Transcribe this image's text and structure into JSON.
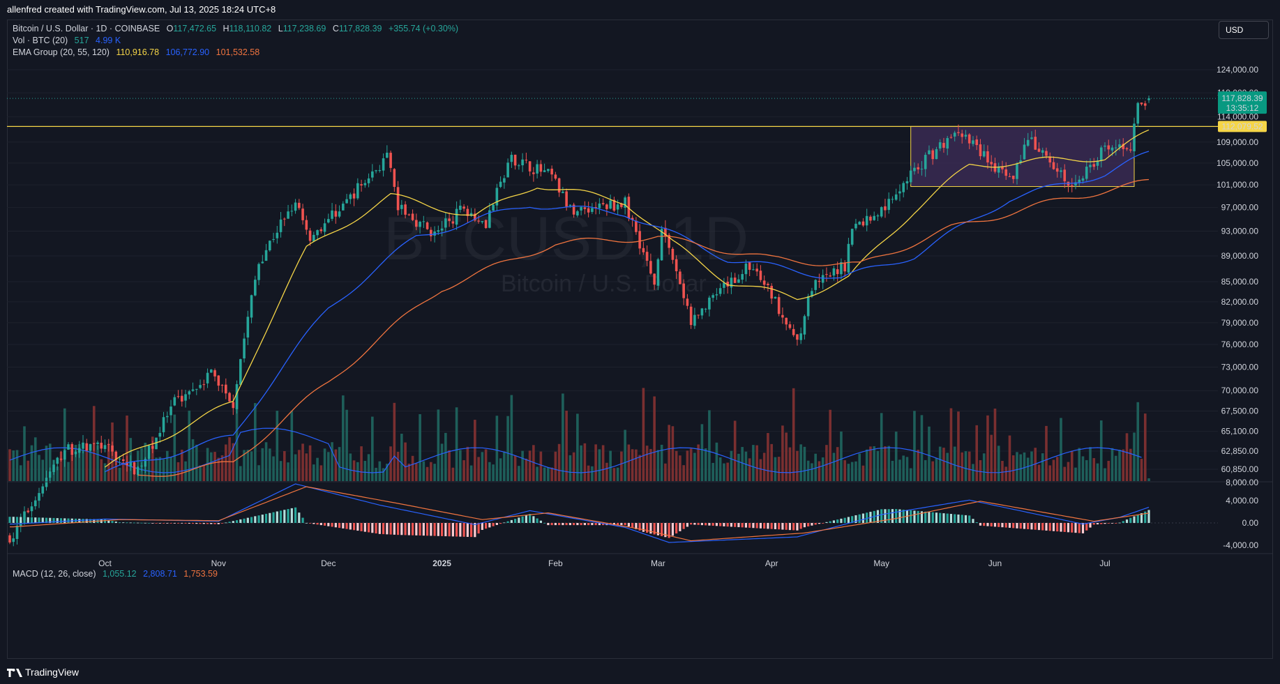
{
  "header": {
    "attribution": "allenfred created with TradingView.com, Jul 13, 2025 18:24 UTC+8"
  },
  "footer": {
    "brand": "TradingView"
  },
  "currency_button": "USD",
  "legend": {
    "symbol_line": "Bitcoin / U.S. Dollar · 1D · COINBASE",
    "open_label": "O",
    "open": "117,472.65",
    "high_label": "H",
    "high": "118,110.82",
    "low_label": "L",
    "low": "117,238.69",
    "close_label": "C",
    "close": "117,828.39",
    "change": "+355.74 (+0.30%)",
    "vol_label": "Vol · BTC (20)",
    "vol_value": "517",
    "vol_ma": "4.99 K",
    "ema_label": "EMA Group (20, 55, 120)",
    "ema20": "110,916.78",
    "ema55": "106,772.90",
    "ema120": "101,532.58",
    "macd_label": "MACD (12, 26, close)",
    "macd_hist": "1,055.12",
    "macd_line": "2,808.71",
    "macd_signal": "1,753.59"
  },
  "watermark": {
    "symbol": "BTCUSD, 1D",
    "name": "Bitcoin / U.S. Dollar"
  },
  "colors": {
    "background": "#131722",
    "up": "#26a69a",
    "down": "#ef5350",
    "ema20": "#f5d547",
    "ema55": "#2962ff",
    "ema120": "#f0743f",
    "box_fill": "#3a2a52",
    "box_stroke": "#f5d547",
    "hline": "#f5d547",
    "price_label": "#089981"
  },
  "price_axis": {
    "ticks": [
      "124,000.00",
      "119,000.00",
      "114,000.00",
      "109,000.00",
      "105,000.00",
      "101,000.00",
      "97,000.00",
      "93,000.00",
      "89,000.00",
      "85,000.00",
      "82,000.00",
      "79,000.00",
      "76,000.00",
      "73,000.00",
      "70,000.00",
      "67,500.00",
      "65,100.00",
      "62,850.00",
      "60,850.00"
    ],
    "tick_values": [
      124000,
      119000,
      114000,
      109000,
      105000,
      101000,
      97000,
      93000,
      89000,
      85000,
      82000,
      79000,
      76000,
      73000,
      70000,
      67500,
      65100,
      62850,
      60850
    ],
    "current_price": "117,828.39",
    "countdown": "13:35:12",
    "hline_price_label": "112,079.52"
  },
  "volume_axis": {
    "tick": "8,000.00"
  },
  "macd_axis": {
    "ticks": [
      "4,000.00",
      "0.00",
      "-4,000.00"
    ],
    "tick_values": [
      4000,
      0,
      -4000
    ]
  },
  "time_axis": {
    "labels": [
      "Oct",
      "Nov",
      "Dec",
      "2025",
      "Feb",
      "Mar",
      "Apr",
      "May",
      "Jun",
      "Jul"
    ]
  },
  "annotations": {
    "horizontal_line_price": 112079.52,
    "consolidation_box": {
      "start": "2025-05-09",
      "end": "2025-07-09",
      "top": 112079.52,
      "bottom": 100700
    }
  },
  "chart_data": {
    "type": "candlestick",
    "title": "Bitcoin / U.S. Dollar · 1D · COINBASE",
    "x_range": [
      "2024-09-05",
      "2025-07-13"
    ],
    "ylim": [
      56000,
      126000
    ],
    "y_scale": "log",
    "price_anchors": [
      {
        "date": "2024-09-06",
        "price": 54000
      },
      {
        "date": "2024-09-20",
        "price": 63000
      },
      {
        "date": "2024-09-30",
        "price": 63500
      },
      {
        "date": "2024-10-10",
        "price": 60500
      },
      {
        "date": "2024-10-20",
        "price": 68500
      },
      {
        "date": "2024-10-30",
        "price": 72300
      },
      {
        "date": "2024-11-05",
        "price": 68500
      },
      {
        "date": "2024-11-12",
        "price": 88000
      },
      {
        "date": "2024-11-22",
        "price": 98500
      },
      {
        "date": "2024-11-26",
        "price": 92000
      },
      {
        "date": "2024-12-05",
        "price": 97500
      },
      {
        "date": "2024-12-17",
        "price": 106000
      },
      {
        "date": "2024-12-20",
        "price": 97000
      },
      {
        "date": "2024-12-30",
        "price": 92500
      },
      {
        "date": "2025-01-07",
        "price": 97000
      },
      {
        "date": "2025-01-13",
        "price": 94500
      },
      {
        "date": "2025-01-20",
        "price": 106000
      },
      {
        "date": "2025-01-31",
        "price": 102500
      },
      {
        "date": "2025-02-05",
        "price": 96500
      },
      {
        "date": "2025-02-20",
        "price": 97800
      },
      {
        "date": "2025-02-28",
        "price": 84500
      },
      {
        "date": "2025-03-02",
        "price": 94000
      },
      {
        "date": "2025-03-10",
        "price": 79000
      },
      {
        "date": "2025-03-20",
        "price": 84500
      },
      {
        "date": "2025-03-26",
        "price": 87500
      },
      {
        "date": "2025-04-01",
        "price": 83000
      },
      {
        "date": "2025-04-08",
        "price": 76500
      },
      {
        "date": "2025-04-12",
        "price": 84000
      },
      {
        "date": "2025-04-21",
        "price": 87500
      },
      {
        "date": "2025-04-23",
        "price": 93500
      },
      {
        "date": "2025-05-01",
        "price": 96500
      },
      {
        "date": "2025-05-09",
        "price": 103000
      },
      {
        "date": "2025-05-22",
        "price": 111500
      },
      {
        "date": "2025-06-05",
        "price": 101500
      },
      {
        "date": "2025-06-10",
        "price": 109500
      },
      {
        "date": "2025-06-22",
        "price": 100500
      },
      {
        "date": "2025-06-30",
        "price": 107000
      },
      {
        "date": "2025-07-08",
        "price": 108500
      },
      {
        "date": "2025-07-10",
        "price": 116000
      },
      {
        "date": "2025-07-13",
        "price": 117828.39
      }
    ],
    "ema20_anchors": [
      {
        "date": "2024-10-01",
        "price": 61000
      },
      {
        "date": "2024-11-05",
        "price": 68500
      },
      {
        "date": "2024-11-25",
        "price": 90000
      },
      {
        "date": "2024-12-18",
        "price": 99000
      },
      {
        "date": "2025-01-10",
        "price": 95500
      },
      {
        "date": "2025-01-27",
        "price": 101000
      },
      {
        "date": "2025-02-20",
        "price": 98000
      },
      {
        "date": "2025-03-05",
        "price": 91000
      },
      {
        "date": "2025-03-20",
        "price": 85000
      },
      {
        "date": "2025-04-08",
        "price": 82500
      },
      {
        "date": "2025-04-22",
        "price": 85500
      },
      {
        "date": "2025-05-10",
        "price": 96500
      },
      {
        "date": "2025-05-25",
        "price": 104500
      },
      {
        "date": "2025-06-15",
        "price": 105500
      },
      {
        "date": "2025-07-01",
        "price": 106000
      },
      {
        "date": "2025-07-13",
        "price": 110916.78
      }
    ],
    "ema55_anchors": [
      {
        "date": "2024-10-01",
        "price": 60500
      },
      {
        "date": "2024-11-05",
        "price": 64500
      },
      {
        "date": "2024-12-01",
        "price": 81000
      },
      {
        "date": "2024-12-25",
        "price": 92000
      },
      {
        "date": "2025-01-25",
        "price": 97500
      },
      {
        "date": "2025-02-20",
        "price": 96000
      },
      {
        "date": "2025-03-20",
        "price": 88500
      },
      {
        "date": "2025-04-20",
        "price": 85500
      },
      {
        "date": "2025-05-10",
        "price": 89000
      },
      {
        "date": "2025-06-05",
        "price": 98500
      },
      {
        "date": "2025-07-01",
        "price": 103000
      },
      {
        "date": "2025-07-13",
        "price": 106772.9
      }
    ],
    "ema120_anchors": [
      {
        "date": "2024-10-10",
        "price": 60000
      },
      {
        "date": "2024-11-05",
        "price": 61500
      },
      {
        "date": "2024-12-01",
        "price": 71000
      },
      {
        "date": "2025-01-01",
        "price": 84000
      },
      {
        "date": "2025-02-01",
        "price": 91000
      },
      {
        "date": "2025-03-01",
        "price": 92000
      },
      {
        "date": "2025-04-01",
        "price": 88500
      },
      {
        "date": "2025-04-25",
        "price": 87500
      },
      {
        "date": "2025-05-20",
        "price": 93500
      },
      {
        "date": "2025-06-20",
        "price": 98500
      },
      {
        "date": "2025-07-13",
        "price": 101532.58
      }
    ],
    "macd": {
      "macd_anchors": [
        {
          "date": "2024-09-06",
          "value": -200
        },
        {
          "date": "2024-10-01",
          "value": 700
        },
        {
          "date": "2024-11-01",
          "value": 300
        },
        {
          "date": "2024-11-22",
          "value": 7000
        },
        {
          "date": "2024-12-15",
          "value": 3200
        },
        {
          "date": "2025-01-10",
          "value": -300
        },
        {
          "date": "2025-01-25",
          "value": 2200
        },
        {
          "date": "2025-02-20",
          "value": -800
        },
        {
          "date": "2025-03-04",
          "value": -3500
        },
        {
          "date": "2025-04-08",
          "value": -2500
        },
        {
          "date": "2025-05-01",
          "value": 1500
        },
        {
          "date": "2025-05-25",
          "value": 4100
        },
        {
          "date": "2025-06-25",
          "value": -200
        },
        {
          "date": "2025-07-05",
          "value": 1000
        },
        {
          "date": "2025-07-13",
          "value": 2808.71
        }
      ],
      "signal_anchors": [
        {
          "date": "2024-09-06",
          "value": -700
        },
        {
          "date": "2024-10-05",
          "value": 600
        },
        {
          "date": "2024-11-01",
          "value": 400
        },
        {
          "date": "2024-11-25",
          "value": 6500
        },
        {
          "date": "2024-12-20",
          "value": 3500
        },
        {
          "date": "2025-01-12",
          "value": 600
        },
        {
          "date": "2025-01-30",
          "value": 1800
        },
        {
          "date": "2025-02-25",
          "value": -1200
        },
        {
          "date": "2025-03-10",
          "value": -3200
        },
        {
          "date": "2025-04-10",
          "value": -1800
        },
        {
          "date": "2025-05-05",
          "value": 800
        },
        {
          "date": "2025-05-28",
          "value": 3900
        },
        {
          "date": "2025-06-28",
          "value": 300
        },
        {
          "date": "2025-07-13",
          "value": 1753.59
        }
      ],
      "last_histogram": 1055.12
    },
    "volume_spikes": [
      {
        "date": "2024-11-06",
        "value": "high"
      },
      {
        "date": "2024-11-11",
        "value": "high"
      },
      {
        "date": "2024-12-05",
        "value": "high"
      },
      {
        "date": "2024-12-19",
        "value": "high"
      },
      {
        "date": "2025-01-20",
        "value": "high"
      },
      {
        "date": "2025-02-03",
        "value": "high"
      },
      {
        "date": "2025-02-25",
        "value": "high"
      },
      {
        "date": "2025-02-28",
        "value": "high"
      },
      {
        "date": "2025-04-07",
        "value": "high"
      },
      {
        "date": "2025-07-10",
        "value": "high"
      }
    ]
  }
}
